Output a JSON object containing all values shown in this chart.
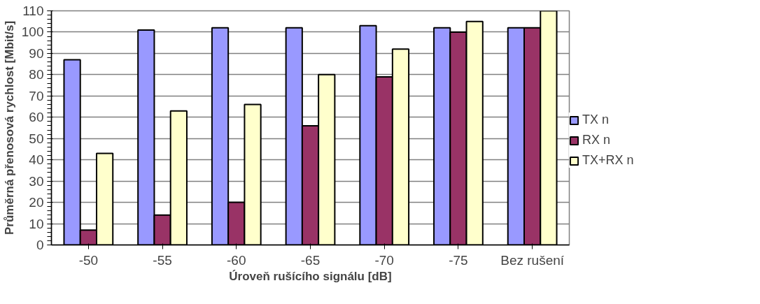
{
  "chart_data": {
    "type": "bar",
    "xlabel": "Úroveň rušícího signálu [dB]",
    "ylabel": "Průměrná přenosová rychlost [Mbit/s]",
    "categories": [
      "-50",
      "-55",
      "-60",
      "-65",
      "-70",
      "-75",
      "Bez rušení"
    ],
    "series": [
      {
        "name": "TX n",
        "color": "#9999ff",
        "values": [
          87,
          101,
          102,
          102,
          103,
          102,
          102
        ]
      },
      {
        "name": "RX n",
        "color": "#993366",
        "values": [
          7,
          14,
          20,
          56,
          79,
          100,
          102
        ]
      },
      {
        "name": "TX+RX n",
        "color": "#ffffcc",
        "values": [
          43,
          63,
          66,
          80,
          92,
          105,
          110
        ]
      }
    ],
    "ylim": [
      0,
      110
    ],
    "yticks": [
      0,
      10,
      20,
      30,
      40,
      50,
      60,
      70,
      80,
      90,
      100,
      110
    ],
    "grid": "y",
    "legend": "right"
  }
}
